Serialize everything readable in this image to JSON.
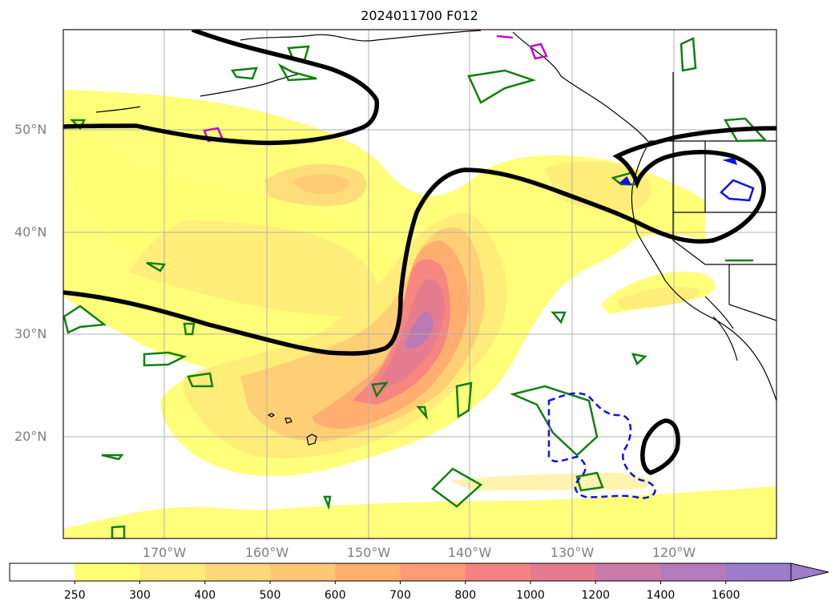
{
  "title": "2024011700 F012",
  "lat_labels": [
    {
      "value": 50,
      "label": "50°N"
    },
    {
      "value": 40,
      "label": "40°N"
    },
    {
      "value": 30,
      "label": "30°N"
    },
    {
      "value": 20,
      "label": "20°N"
    }
  ],
  "lon_labels": [
    {
      "value": -170,
      "label": "170°W"
    },
    {
      "value": -160,
      "label": "160°W"
    },
    {
      "value": -150,
      "label": "150°W"
    },
    {
      "value": -140,
      "label": "140°W"
    },
    {
      "value": -130,
      "label": "130°W"
    },
    {
      "value": -120,
      "label": "120°W"
    }
  ],
  "colorbar": {
    "levels": [
      250,
      300,
      400,
      500,
      600,
      700,
      800,
      1000,
      1200,
      1400,
      1600
    ],
    "tick_labels": [
      "250",
      "300",
      "400",
      "500",
      "600",
      "700",
      "800",
      "1000",
      "1200",
      "1400",
      "1600"
    ],
    "colors": [
      "#ffffff",
      "#ffff73",
      "#ffeb7a",
      "#ffd97a",
      "#ffc774",
      "#ffb06e",
      "#ff9a78",
      "#f58282",
      "#e47b8f",
      "#cc7aa7",
      "#b47ab9",
      "#9d7cc9"
    ],
    "extend": "max"
  },
  "map": {
    "lon_range": [
      -180,
      -110
    ],
    "lat_range": [
      10,
      60
    ],
    "gridlines": true,
    "field": "filled contours of magnitude (250–1600+)",
    "overlays": [
      "black thick contour",
      "green contours",
      "blue dashed contours",
      "magenta contours"
    ]
  }
}
